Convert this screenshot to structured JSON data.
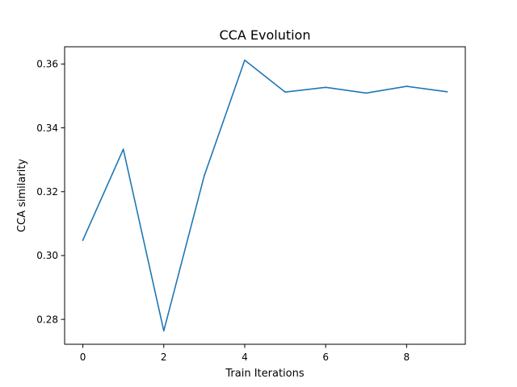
{
  "chart_data": {
    "type": "line",
    "title": "CCA Evolution",
    "xlabel": "Train Iterations",
    "ylabel": "CCA similarity",
    "xlim": [
      -0.45,
      9.45
    ],
    "ylim": [
      0.2722,
      0.3654
    ],
    "x_ticks": [
      0,
      2,
      4,
      6,
      8
    ],
    "x_tick_labels": [
      "0",
      "2",
      "4",
      "6",
      "8"
    ],
    "y_ticks": [
      0.28,
      0.3,
      0.32,
      0.34,
      0.36
    ],
    "y_tick_labels": [
      "0.28",
      "0.30",
      "0.32",
      "0.34",
      "0.36"
    ],
    "grid": false,
    "legend": "none",
    "series": [
      {
        "color": "#1f77b4",
        "x": [
          0,
          1,
          2,
          3,
          4,
          5,
          6,
          7,
          8,
          9
        ],
        "values": [
          0.3048,
          0.3333,
          0.2764,
          0.325,
          0.3612,
          0.3512,
          0.3527,
          0.3509,
          0.353,
          0.3513
        ]
      }
    ]
  }
}
